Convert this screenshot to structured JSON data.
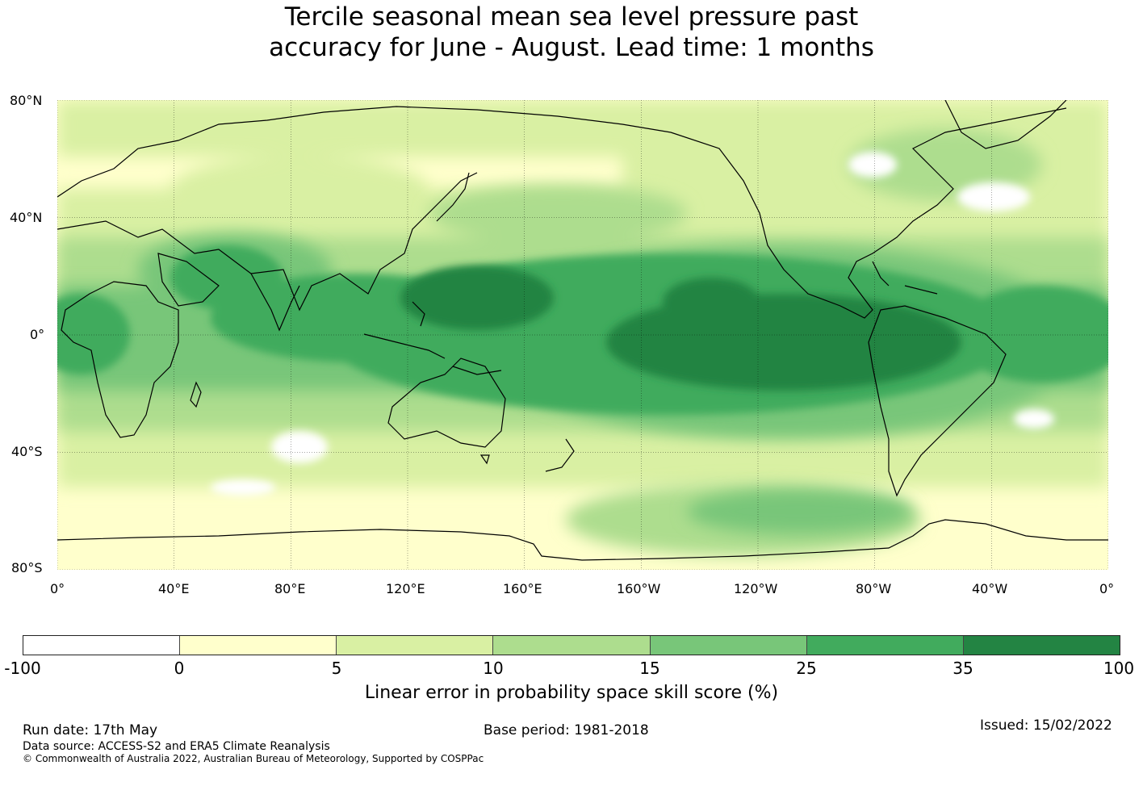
{
  "title_line1": "Tercile seasonal mean sea level pressure past",
  "title_line2": "accuracy for June - August. Lead time: 1 months",
  "map": {
    "lat_labels": [
      "80°N",
      "40°N",
      "0°",
      "40°S",
      "80°S"
    ],
    "lon_labels": [
      "0°",
      "40°E",
      "80°E",
      "120°E",
      "160°E",
      "160°W",
      "120°W",
      "80°W",
      "40°W",
      "0°"
    ],
    "lat_values": [
      80,
      40,
      0,
      -40,
      -80
    ],
    "lon_values": [
      0,
      40,
      80,
      120,
      160,
      200,
      240,
      280,
      320,
      360
    ]
  },
  "colorbar": {
    "ticks": [
      "-100",
      "0",
      "5",
      "10",
      "15",
      "25",
      "35",
      "100"
    ],
    "colors": [
      "#ffffff",
      "#ffffcc",
      "#d9f0a3",
      "#addd8e",
      "#78c679",
      "#41ab5d",
      "#238443"
    ],
    "label": "Linear error in probability space skill score (%)"
  },
  "footer": {
    "run_date": "Run date: 17th May",
    "base_period": "Base period: 1981-2018",
    "issued": "Issued: 15/02/2022",
    "data_source": "Data source: ACCESS-S2 and ERA5 Climate Reanalysis",
    "copyright": "© Commonwealth of Australia 2022, Australian Bureau of Meteorology, Supported by COSPPac"
  }
}
